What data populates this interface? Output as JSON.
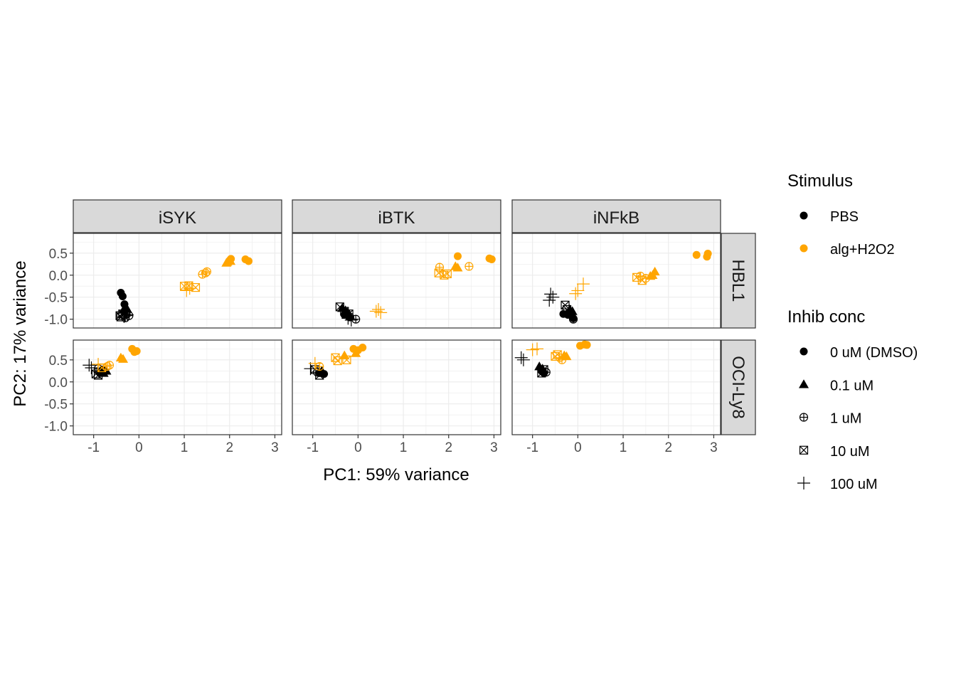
{
  "chart_data": {
    "type": "scatter",
    "xlabel": "PC1: 59% variance",
    "ylabel": "PC2: 17% variance",
    "xlim": [
      -1.45,
      3.15
    ],
    "ylim": [
      -1.2,
      0.95
    ],
    "xticks": [
      -1,
      0,
      1,
      2,
      3
    ],
    "xtick_labels": [
      "-1",
      "0",
      "1",
      "2",
      "3"
    ],
    "yticks": [
      -1.0,
      -0.5,
      0.0,
      0.5
    ],
    "ytick_labels": [
      "-1.0",
      "-0.5",
      "0.0",
      "0.5"
    ],
    "grid": true,
    "facet_columns": [
      "iSYK",
      "iBTK",
      "iNFkB"
    ],
    "facet_rows": [
      "HBL1",
      "OCI-Ly8"
    ],
    "colors": {
      "PBS": "#000000",
      "alg+H2O2": "#FFA500"
    },
    "legend": {
      "position": "right",
      "stimulus_title": "Stimulus",
      "stimulus_items": [
        {
          "label": "PBS",
          "color": "#000000"
        },
        {
          "label": "alg+H2O2",
          "color": "#FFA500"
        }
      ],
      "inhib_title": "Inhib conc",
      "inhib_items": [
        {
          "label": "0 uM (DMSO)",
          "shape": "circle"
        },
        {
          "label": "0.1 uM",
          "shape": "triangle"
        },
        {
          "label": "1 uM",
          "shape": "circle-plus"
        },
        {
          "label": "10 uM",
          "shape": "square-x"
        },
        {
          "label": "100 uM",
          "shape": "plus"
        }
      ]
    },
    "panels": [
      {
        "col": "iSYK",
        "row": "HBL1",
        "points": [
          {
            "x": -0.4,
            "y": -0.4,
            "stim": "PBS",
            "conc": "0 uM (DMSO)"
          },
          {
            "x": -0.36,
            "y": -0.48,
            "stim": "PBS",
            "conc": "0 uM (DMSO)"
          },
          {
            "x": -0.32,
            "y": -0.66,
            "stim": "PBS",
            "conc": "0 uM (DMSO)"
          },
          {
            "x": -0.3,
            "y": -0.72,
            "stim": "PBS",
            "conc": "0.1 uM"
          },
          {
            "x": -0.26,
            "y": -0.77,
            "stim": "PBS",
            "conc": "0.1 uM"
          },
          {
            "x": -0.34,
            "y": -0.79,
            "stim": "PBS",
            "conc": "0.1 uM"
          },
          {
            "x": -0.28,
            "y": -0.88,
            "stim": "PBS",
            "conc": "1 uM"
          },
          {
            "x": -0.22,
            "y": -0.92,
            "stim": "PBS",
            "conc": "1 uM"
          },
          {
            "x": -0.3,
            "y": -0.97,
            "stim": "PBS",
            "conc": "1 uM"
          },
          {
            "x": -0.42,
            "y": -0.92,
            "stim": "PBS",
            "conc": "10 uM"
          },
          {
            "x": -0.36,
            "y": -0.88,
            "stim": "PBS",
            "conc": "10 uM"
          },
          {
            "x": -0.4,
            "y": -0.95,
            "stim": "PBS",
            "conc": "10 uM"
          },
          {
            "x": -0.26,
            "y": -0.9,
            "stim": "PBS",
            "conc": "100 uM"
          },
          {
            "x": -0.33,
            "y": -0.94,
            "stim": "PBS",
            "conc": "100 uM"
          },
          {
            "x": 2.03,
            "y": 0.37,
            "stim": "alg+H2O2",
            "conc": "0 uM (DMSO)"
          },
          {
            "x": 2.35,
            "y": 0.36,
            "stim": "alg+H2O2",
            "conc": "0 uM (DMSO)"
          },
          {
            "x": 2.42,
            "y": 0.32,
            "stim": "alg+H2O2",
            "conc": "0 uM (DMSO)"
          },
          {
            "x": 1.95,
            "y": 0.3,
            "stim": "alg+H2O2",
            "conc": "0.1 uM"
          },
          {
            "x": 2.02,
            "y": 0.32,
            "stim": "alg+H2O2",
            "conc": "0.1 uM"
          },
          {
            "x": 1.93,
            "y": 0.28,
            "stim": "alg+H2O2",
            "conc": "0.1 uM"
          },
          {
            "x": 1.4,
            "y": 0.02,
            "stim": "alg+H2O2",
            "conc": "1 uM"
          },
          {
            "x": 1.5,
            "y": 0.08,
            "stim": "alg+H2O2",
            "conc": "1 uM"
          },
          {
            "x": 1.47,
            "y": 0.05,
            "stim": "alg+H2O2",
            "conc": "1 uM"
          },
          {
            "x": 1.0,
            "y": -0.25,
            "stim": "alg+H2O2",
            "conc": "10 uM"
          },
          {
            "x": 1.25,
            "y": -0.28,
            "stim": "alg+H2O2",
            "conc": "10 uM"
          },
          {
            "x": 1.1,
            "y": -0.24,
            "stim": "alg+H2O2",
            "conc": "10 uM"
          },
          {
            "x": 1.05,
            "y": -0.35,
            "stim": "alg+H2O2",
            "conc": "100 uM"
          },
          {
            "x": 1.12,
            "y": -0.3,
            "stim": "alg+H2O2",
            "conc": "100 uM"
          }
        ]
      },
      {
        "col": "iBTK",
        "row": "HBL1",
        "points": [
          {
            "x": -0.25,
            "y": -0.85,
            "stim": "PBS",
            "conc": "0 uM (DMSO)"
          },
          {
            "x": -0.2,
            "y": -0.95,
            "stim": "PBS",
            "conc": "0 uM (DMSO)"
          },
          {
            "x": -0.3,
            "y": -0.9,
            "stim": "PBS",
            "conc": "0 uM (DMSO)"
          },
          {
            "x": -0.35,
            "y": -0.75,
            "stim": "PBS",
            "conc": "0.1 uM"
          },
          {
            "x": -0.28,
            "y": -0.8,
            "stim": "PBS",
            "conc": "0.1 uM"
          },
          {
            "x": -0.18,
            "y": -0.95,
            "stim": "PBS",
            "conc": "1 uM"
          },
          {
            "x": -0.05,
            "y": -1.0,
            "stim": "PBS",
            "conc": "1 uM"
          },
          {
            "x": -0.4,
            "y": -0.72,
            "stim": "PBS",
            "conc": "10 uM"
          },
          {
            "x": -0.3,
            "y": -0.82,
            "stim": "PBS",
            "conc": "10 uM"
          },
          {
            "x": -0.2,
            "y": -0.88,
            "stim": "PBS",
            "conc": "10 uM"
          },
          {
            "x": -0.22,
            "y": -0.98,
            "stim": "PBS",
            "conc": "100 uM"
          },
          {
            "x": -0.15,
            "y": -1.02,
            "stim": "PBS",
            "conc": "100 uM"
          },
          {
            "x": 2.2,
            "y": 0.43,
            "stim": "alg+H2O2",
            "conc": "0 uM (DMSO)"
          },
          {
            "x": 2.9,
            "y": 0.38,
            "stim": "alg+H2O2",
            "conc": "0 uM (DMSO)"
          },
          {
            "x": 2.95,
            "y": 0.36,
            "stim": "alg+H2O2",
            "conc": "0 uM (DMSO)"
          },
          {
            "x": 2.15,
            "y": 0.2,
            "stim": "alg+H2O2",
            "conc": "0.1 uM"
          },
          {
            "x": 2.2,
            "y": 0.17,
            "stim": "alg+H2O2",
            "conc": "0.1 uM"
          },
          {
            "x": 1.8,
            "y": 0.18,
            "stim": "alg+H2O2",
            "conc": "1 uM"
          },
          {
            "x": 2.45,
            "y": 0.2,
            "stim": "alg+H2O2",
            "conc": "1 uM"
          },
          {
            "x": 1.78,
            "y": 0.05,
            "stim": "alg+H2O2",
            "conc": "10 uM"
          },
          {
            "x": 1.9,
            "y": 0.0,
            "stim": "alg+H2O2",
            "conc": "10 uM"
          },
          {
            "x": 1.97,
            "y": 0.03,
            "stim": "alg+H2O2",
            "conc": "10 uM"
          },
          {
            "x": 0.4,
            "y": -0.82,
            "stim": "alg+H2O2",
            "conc": "100 uM"
          },
          {
            "x": 0.5,
            "y": -0.85,
            "stim": "alg+H2O2",
            "conc": "100 uM"
          },
          {
            "x": 0.45,
            "y": -0.78,
            "stim": "alg+H2O2",
            "conc": "100 uM"
          }
        ]
      },
      {
        "col": "iNFkB",
        "row": "HBL1",
        "points": [
          {
            "x": -0.32,
            "y": -0.88,
            "stim": "PBS",
            "conc": "0 uM (DMSO)"
          },
          {
            "x": -0.1,
            "y": -0.98,
            "stim": "PBS",
            "conc": "0 uM (DMSO)"
          },
          {
            "x": -0.22,
            "y": -0.9,
            "stim": "PBS",
            "conc": "0 uM (DMSO)"
          },
          {
            "x": -0.12,
            "y": -0.82,
            "stim": "PBS",
            "conc": "0.1 uM"
          },
          {
            "x": -0.18,
            "y": -0.78,
            "stim": "PBS",
            "conc": "0.1 uM"
          },
          {
            "x": -0.1,
            "y": -1.0,
            "stim": "PBS",
            "conc": "1 uM"
          },
          {
            "x": -0.28,
            "y": -0.68,
            "stim": "PBS",
            "conc": "10 uM"
          },
          {
            "x": -0.24,
            "y": -0.78,
            "stim": "PBS",
            "conc": "10 uM"
          },
          {
            "x": -0.6,
            "y": -0.43,
            "stim": "PBS",
            "conc": "100 uM"
          },
          {
            "x": -0.55,
            "y": -0.5,
            "stim": "PBS",
            "conc": "100 uM"
          },
          {
            "x": -0.63,
            "y": -0.57,
            "stim": "PBS",
            "conc": "100 uM"
          },
          {
            "x": 2.62,
            "y": 0.46,
            "stim": "alg+H2O2",
            "conc": "0 uM (DMSO)"
          },
          {
            "x": 2.87,
            "y": 0.49,
            "stim": "alg+H2O2",
            "conc": "0 uM (DMSO)"
          },
          {
            "x": 2.85,
            "y": 0.42,
            "stim": "alg+H2O2",
            "conc": "0 uM (DMSO)"
          },
          {
            "x": 1.7,
            "y": 0.08,
            "stim": "alg+H2O2",
            "conc": "0.1 uM"
          },
          {
            "x": 1.6,
            "y": -0.02,
            "stim": "alg+H2O2",
            "conc": "0.1 uM"
          },
          {
            "x": 1.65,
            "y": 0.0,
            "stim": "alg+H2O2",
            "conc": "0.1 uM"
          },
          {
            "x": 1.38,
            "y": -0.02,
            "stim": "alg+H2O2",
            "conc": "1 uM"
          },
          {
            "x": 1.5,
            "y": -0.07,
            "stim": "alg+H2O2",
            "conc": "1 uM"
          },
          {
            "x": 1.3,
            "y": -0.05,
            "stim": "alg+H2O2",
            "conc": "10 uM"
          },
          {
            "x": 1.42,
            "y": -0.12,
            "stim": "alg+H2O2",
            "conc": "10 uM"
          },
          {
            "x": 0.12,
            "y": -0.2,
            "stim": "alg+H2O2",
            "conc": "100 uM"
          },
          {
            "x": 0.0,
            "y": -0.35,
            "stim": "alg+H2O2",
            "conc": "100 uM"
          },
          {
            "x": -0.05,
            "y": -0.42,
            "stim": "alg+H2O2",
            "conc": "100 uM"
          }
        ]
      },
      {
        "col": "iSYK",
        "row": "OCI-Ly8",
        "points": [
          {
            "x": -0.8,
            "y": 0.28,
            "stim": "PBS",
            "conc": "0 uM (DMSO)"
          },
          {
            "x": -0.85,
            "y": 0.22,
            "stim": "PBS",
            "conc": "0 uM (DMSO)"
          },
          {
            "x": -0.72,
            "y": 0.25,
            "stim": "PBS",
            "conc": "0.1 uM"
          },
          {
            "x": -0.78,
            "y": 0.2,
            "stim": "PBS",
            "conc": "0.1 uM"
          },
          {
            "x": -0.9,
            "y": 0.3,
            "stim": "PBS",
            "conc": "1 uM"
          },
          {
            "x": -0.95,
            "y": 0.18,
            "stim": "PBS",
            "conc": "10 uM"
          },
          {
            "x": -0.9,
            "y": 0.15,
            "stim": "PBS",
            "conc": "10 uM"
          },
          {
            "x": -1.1,
            "y": 0.38,
            "stim": "PBS",
            "conc": "100 uM"
          },
          {
            "x": -1.05,
            "y": 0.32,
            "stim": "PBS",
            "conc": "100 uM"
          },
          {
            "x": -0.15,
            "y": 0.75,
            "stim": "alg+H2O2",
            "conc": "0 uM (DMSO)"
          },
          {
            "x": -0.05,
            "y": 0.7,
            "stim": "alg+H2O2",
            "conc": "0 uM (DMSO)"
          },
          {
            "x": -0.1,
            "y": 0.68,
            "stim": "alg+H2O2",
            "conc": "0 uM (DMSO)"
          },
          {
            "x": -0.4,
            "y": 0.55,
            "stim": "alg+H2O2",
            "conc": "0.1 uM"
          },
          {
            "x": -0.35,
            "y": 0.52,
            "stim": "alg+H2O2",
            "conc": "0.1 uM"
          },
          {
            "x": -0.7,
            "y": 0.35,
            "stim": "alg+H2O2",
            "conc": "1 uM"
          },
          {
            "x": -0.65,
            "y": 0.38,
            "stim": "alg+H2O2",
            "conc": "1 uM"
          },
          {
            "x": -0.82,
            "y": 0.32,
            "stim": "alg+H2O2",
            "conc": "10 uM"
          },
          {
            "x": -0.9,
            "y": 0.4,
            "stim": "alg+H2O2",
            "conc": "100 uM"
          }
        ]
      },
      {
        "col": "iBTK",
        "row": "OCI-Ly8",
        "points": [
          {
            "x": -0.85,
            "y": 0.2,
            "stim": "PBS",
            "conc": "0 uM (DMSO)"
          },
          {
            "x": -0.75,
            "y": 0.18,
            "stim": "PBS",
            "conc": "0 uM (DMSO)"
          },
          {
            "x": -0.8,
            "y": 0.25,
            "stim": "PBS",
            "conc": "0.1 uM"
          },
          {
            "x": -0.9,
            "y": 0.22,
            "stim": "PBS",
            "conc": "1 uM"
          },
          {
            "x": -0.85,
            "y": 0.15,
            "stim": "PBS",
            "conc": "10 uM"
          },
          {
            "x": -0.95,
            "y": 0.28,
            "stim": "PBS",
            "conc": "10 uM"
          },
          {
            "x": -1.05,
            "y": 0.3,
            "stim": "PBS",
            "conc": "100 uM"
          },
          {
            "x": 0.1,
            "y": 0.78,
            "stim": "alg+H2O2",
            "conc": "0 uM (DMSO)"
          },
          {
            "x": -0.1,
            "y": 0.75,
            "stim": "alg+H2O2",
            "conc": "0 uM (DMSO)"
          },
          {
            "x": 0.0,
            "y": 0.72,
            "stim": "alg+H2O2",
            "conc": "0 uM (DMSO)"
          },
          {
            "x": -0.05,
            "y": 0.65,
            "stim": "alg+H2O2",
            "conc": "0.1 uM"
          },
          {
            "x": -0.3,
            "y": 0.6,
            "stim": "alg+H2O2",
            "conc": "0.1 uM"
          },
          {
            "x": -0.45,
            "y": 0.48,
            "stim": "alg+H2O2",
            "conc": "10 uM"
          },
          {
            "x": -0.25,
            "y": 0.5,
            "stim": "alg+H2O2",
            "conc": "10 uM"
          },
          {
            "x": -0.5,
            "y": 0.55,
            "stim": "alg+H2O2",
            "conc": "10 uM"
          },
          {
            "x": -0.85,
            "y": 0.35,
            "stim": "alg+H2O2",
            "conc": "1 uM"
          },
          {
            "x": -0.95,
            "y": 0.42,
            "stim": "alg+H2O2",
            "conc": "100 uM"
          }
        ]
      },
      {
        "col": "iNFkB",
        "row": "OCI-Ly8",
        "points": [
          {
            "x": -0.8,
            "y": 0.25,
            "stim": "PBS",
            "conc": "0 uM (DMSO)"
          },
          {
            "x": -0.75,
            "y": 0.2,
            "stim": "PBS",
            "conc": "0 uM (DMSO)"
          },
          {
            "x": -0.85,
            "y": 0.35,
            "stim": "PBS",
            "conc": "0.1 uM"
          },
          {
            "x": -0.78,
            "y": 0.3,
            "stim": "PBS",
            "conc": "0.1 uM"
          },
          {
            "x": -0.7,
            "y": 0.22,
            "stim": "PBS",
            "conc": "1 uM"
          },
          {
            "x": -0.8,
            "y": 0.2,
            "stim": "PBS",
            "conc": "10 uM"
          },
          {
            "x": -0.75,
            "y": 0.28,
            "stim": "PBS",
            "conc": "10 uM"
          },
          {
            "x": -1.25,
            "y": 0.55,
            "stim": "PBS",
            "conc": "100 uM"
          },
          {
            "x": -1.2,
            "y": 0.5,
            "stim": "PBS",
            "conc": "100 uM"
          },
          {
            "x": 0.05,
            "y": 0.82,
            "stim": "alg+H2O2",
            "conc": "0 uM (DMSO)"
          },
          {
            "x": 0.15,
            "y": 0.85,
            "stim": "alg+H2O2",
            "conc": "0 uM (DMSO)"
          },
          {
            "x": 0.2,
            "y": 0.84,
            "stim": "alg+H2O2",
            "conc": "0 uM (DMSO)"
          },
          {
            "x": -0.3,
            "y": 0.6,
            "stim": "alg+H2O2",
            "conc": "0.1 uM"
          },
          {
            "x": -0.25,
            "y": 0.58,
            "stim": "alg+H2O2",
            "conc": "0.1 uM"
          },
          {
            "x": -0.4,
            "y": 0.55,
            "stim": "alg+H2O2",
            "conc": "1 uM"
          },
          {
            "x": -0.35,
            "y": 0.5,
            "stim": "alg+H2O2",
            "conc": "1 uM"
          },
          {
            "x": -0.5,
            "y": 0.58,
            "stim": "alg+H2O2",
            "conc": "10 uM"
          },
          {
            "x": -0.45,
            "y": 0.62,
            "stim": "alg+H2O2",
            "conc": "10 uM"
          },
          {
            "x": -1.0,
            "y": 0.73,
            "stim": "alg+H2O2",
            "conc": "100 uM"
          },
          {
            "x": -0.9,
            "y": 0.75,
            "stim": "alg+H2O2",
            "conc": "100 uM"
          }
        ]
      }
    ]
  }
}
